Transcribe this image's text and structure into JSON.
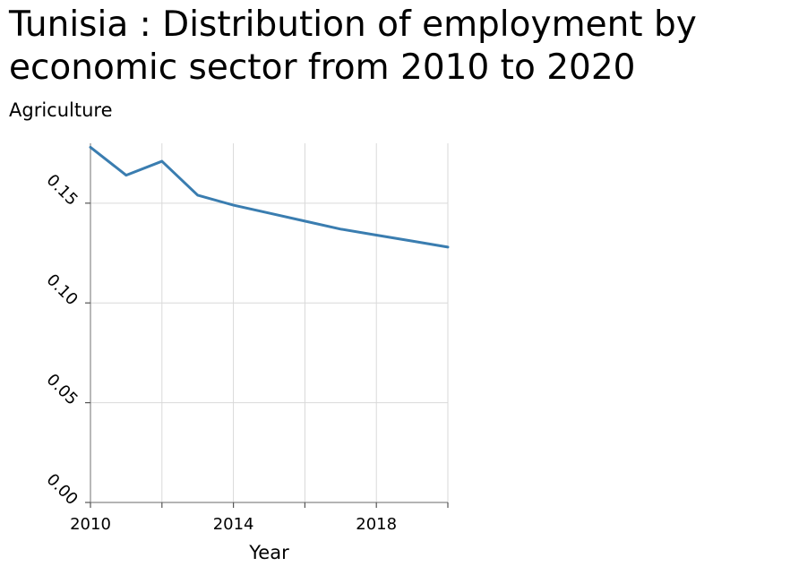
{
  "chart_data": {
    "type": "line",
    "title": "Tunisia : Distribution of employment by economic sector from 2010 to 2020",
    "ylabel": "Agriculture",
    "xlabel": "Year",
    "xlim": [
      2010,
      2020
    ],
    "ylim": [
      0,
      0.18
    ],
    "x_ticks": [
      2010,
      2014,
      2018
    ],
    "x_tick_labels": [
      "2010",
      "2014",
      "2018"
    ],
    "x_grid": [
      2010,
      2012,
      2014,
      2016,
      2018,
      2020
    ],
    "y_ticks": [
      0,
      0.05,
      0.1,
      0.15
    ],
    "y_tick_labels": [
      "0.00",
      "0.05",
      "0.10",
      "0.15"
    ],
    "grid": true,
    "series_color": "#3a7db0",
    "series": [
      {
        "x": [
          2010,
          2011,
          2012,
          2013,
          2014,
          2015,
          2016,
          2017,
          2018,
          2019,
          2020
        ],
        "values": [
          0.178,
          0.164,
          0.171,
          0.154,
          0.149,
          0.145,
          0.141,
          0.137,
          0.134,
          0.131,
          0.128
        ]
      }
    ]
  }
}
